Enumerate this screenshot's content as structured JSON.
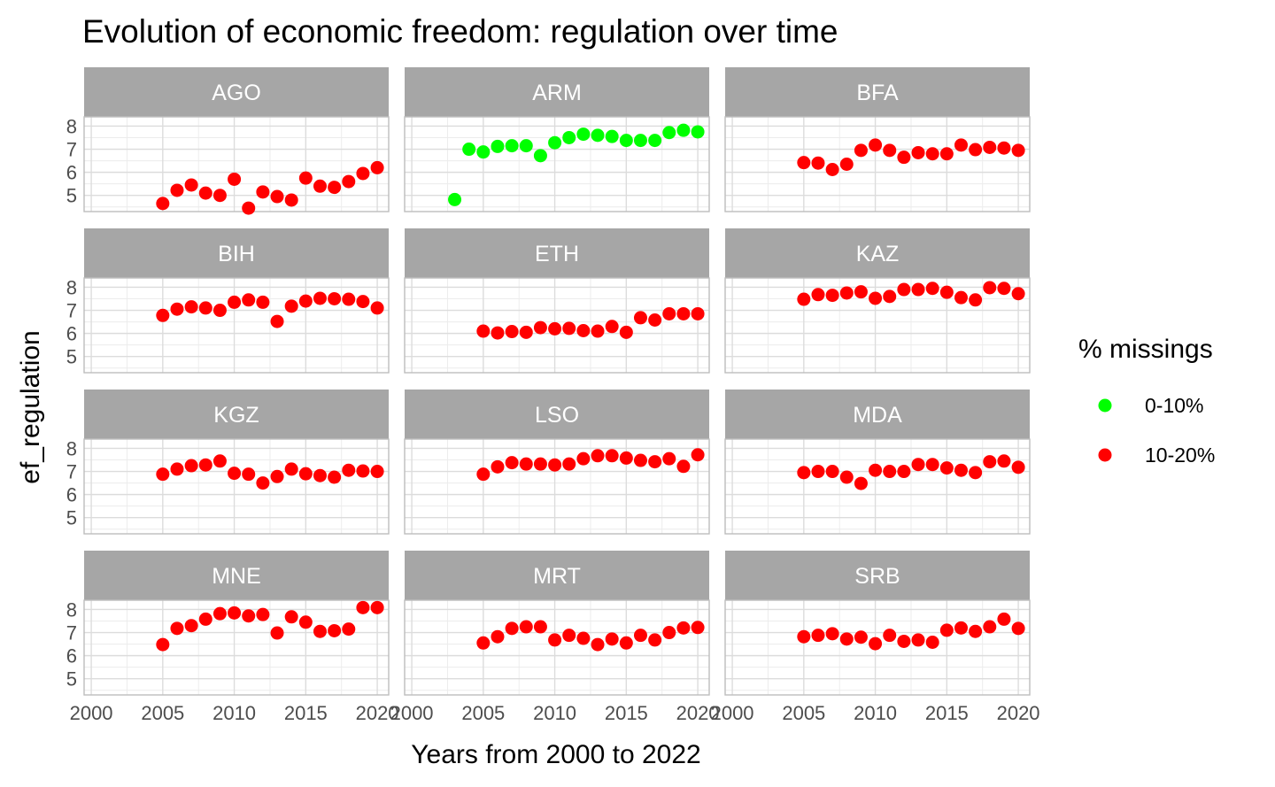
{
  "chart_data": {
    "type": "scatter",
    "title": "Evolution of economic freedom: regulation over time",
    "xlabel": "Years from 2000 to 2022",
    "ylabel": "ef_regulation",
    "xlim": [
      1999.5,
      2020.8
    ],
    "ylim": [
      4.3,
      8.4
    ],
    "x_ticks": [
      2000,
      2005,
      2010,
      2015,
      2020
    ],
    "y_ticks": [
      5,
      6,
      7,
      8
    ],
    "grid": true,
    "legend": {
      "title": "% missings",
      "placement": "right",
      "entries": [
        {
          "label": "0-10%",
          "color": "#00ff00"
        },
        {
          "label": "10-20%",
          "color": "#ff0000"
        }
      ]
    },
    "facets": [
      {
        "name": "AGO",
        "group": "10-20%",
        "x": [
          2005,
          2006,
          2007,
          2008,
          2009,
          2010,
          2011,
          2012,
          2013,
          2014,
          2015,
          2016,
          2017,
          2018,
          2019,
          2020
        ],
        "y": [
          4.65,
          5.22,
          5.45,
          5.1,
          5.0,
          5.7,
          4.45,
          5.15,
          4.95,
          4.8,
          5.75,
          5.4,
          5.35,
          5.6,
          5.95,
          6.2
        ]
      },
      {
        "name": "ARM",
        "group": "0-10%",
        "x": [
          2003,
          2004,
          2005,
          2006,
          2007,
          2008,
          2009,
          2010,
          2011,
          2012,
          2013,
          2014,
          2015,
          2016,
          2017,
          2018,
          2019,
          2020
        ],
        "y": [
          4.82,
          7.0,
          6.88,
          7.12,
          7.15,
          7.15,
          6.72,
          7.28,
          7.5,
          7.65,
          7.6,
          7.55,
          7.38,
          7.38,
          7.38,
          7.72,
          7.82,
          7.75
        ]
      },
      {
        "name": "BFA",
        "group": "10-20%",
        "x": [
          2005,
          2006,
          2007,
          2008,
          2009,
          2010,
          2011,
          2012,
          2013,
          2014,
          2015,
          2016,
          2017,
          2018,
          2019,
          2020
        ],
        "y": [
          6.42,
          6.4,
          6.12,
          6.35,
          6.95,
          7.18,
          6.95,
          6.65,
          6.85,
          6.8,
          6.8,
          7.18,
          6.98,
          7.08,
          7.05,
          6.95
        ]
      },
      {
        "name": "BIH",
        "group": "10-20%",
        "x": [
          2005,
          2006,
          2007,
          2008,
          2009,
          2010,
          2011,
          2012,
          2013,
          2014,
          2015,
          2016,
          2017,
          2018,
          2019,
          2020
        ],
        "y": [
          6.78,
          7.05,
          7.15,
          7.1,
          7.0,
          7.35,
          7.45,
          7.35,
          6.52,
          7.18,
          7.4,
          7.52,
          7.5,
          7.48,
          7.38,
          7.1
        ]
      },
      {
        "name": "ETH",
        "group": "10-20%",
        "x": [
          2005,
          2006,
          2007,
          2008,
          2009,
          2010,
          2011,
          2012,
          2013,
          2014,
          2015,
          2016,
          2017,
          2018,
          2019,
          2020
        ],
        "y": [
          6.1,
          6.02,
          6.08,
          6.05,
          6.25,
          6.2,
          6.22,
          6.12,
          6.1,
          6.3,
          6.05,
          6.68,
          6.58,
          6.85,
          6.85,
          6.85
        ]
      },
      {
        "name": "KAZ",
        "group": "10-20%",
        "x": [
          2005,
          2006,
          2007,
          2008,
          2009,
          2010,
          2011,
          2012,
          2013,
          2014,
          2015,
          2016,
          2017,
          2018,
          2019,
          2020
        ],
        "y": [
          7.48,
          7.68,
          7.65,
          7.75,
          7.8,
          7.52,
          7.6,
          7.9,
          7.9,
          7.95,
          7.78,
          7.55,
          7.45,
          7.98,
          7.95,
          7.72
        ]
      },
      {
        "name": "KGZ",
        "group": "10-20%",
        "x": [
          2005,
          2006,
          2007,
          2008,
          2009,
          2010,
          2011,
          2012,
          2013,
          2014,
          2015,
          2016,
          2017,
          2018,
          2019,
          2020
        ],
        "y": [
          6.88,
          7.1,
          7.25,
          7.28,
          7.45,
          6.92,
          6.88,
          6.5,
          6.78,
          7.1,
          6.9,
          6.82,
          6.75,
          7.05,
          7.02,
          7.0
        ]
      },
      {
        "name": "LSO",
        "group": "10-20%",
        "x": [
          2005,
          2006,
          2007,
          2008,
          2009,
          2010,
          2011,
          2012,
          2013,
          2014,
          2015,
          2016,
          2017,
          2018,
          2019,
          2020
        ],
        "y": [
          6.88,
          7.2,
          7.38,
          7.32,
          7.32,
          7.28,
          7.32,
          7.55,
          7.68,
          7.68,
          7.58,
          7.48,
          7.42,
          7.55,
          7.22,
          7.72
        ]
      },
      {
        "name": "MDA",
        "group": "10-20%",
        "x": [
          2005,
          2006,
          2007,
          2008,
          2009,
          2010,
          2011,
          2012,
          2013,
          2014,
          2015,
          2016,
          2017,
          2018,
          2019,
          2020
        ],
        "y": [
          6.95,
          7.0,
          7.0,
          6.75,
          6.48,
          7.05,
          7.0,
          7.0,
          7.3,
          7.3,
          7.15,
          7.05,
          6.95,
          7.42,
          7.45,
          7.18
        ]
      },
      {
        "name": "MNE",
        "group": "10-20%",
        "x": [
          2005,
          2006,
          2007,
          2008,
          2009,
          2010,
          2011,
          2012,
          2013,
          2014,
          2015,
          2016,
          2017,
          2018,
          2019,
          2020
        ],
        "y": [
          6.48,
          7.18,
          7.3,
          7.58,
          7.82,
          7.85,
          7.72,
          7.78,
          6.98,
          7.68,
          7.45,
          7.05,
          7.08,
          7.15,
          8.08,
          8.08
        ]
      },
      {
        "name": "MRT",
        "group": "10-20%",
        "x": [
          2005,
          2006,
          2007,
          2008,
          2009,
          2010,
          2011,
          2012,
          2013,
          2014,
          2015,
          2016,
          2017,
          2018,
          2019,
          2020
        ],
        "y": [
          6.55,
          6.82,
          7.18,
          7.25,
          7.25,
          6.68,
          6.88,
          6.75,
          6.48,
          6.72,
          6.55,
          6.88,
          6.68,
          7.0,
          7.2,
          7.22
        ]
      },
      {
        "name": "SRB",
        "group": "10-20%",
        "x": [
          2005,
          2006,
          2007,
          2008,
          2009,
          2010,
          2011,
          2012,
          2013,
          2014,
          2015,
          2016,
          2017,
          2018,
          2019,
          2020
        ],
        "y": [
          6.82,
          6.88,
          6.95,
          6.72,
          6.8,
          6.52,
          6.88,
          6.62,
          6.68,
          6.58,
          7.1,
          7.2,
          7.05,
          7.25,
          7.58,
          7.18
        ]
      }
    ]
  }
}
